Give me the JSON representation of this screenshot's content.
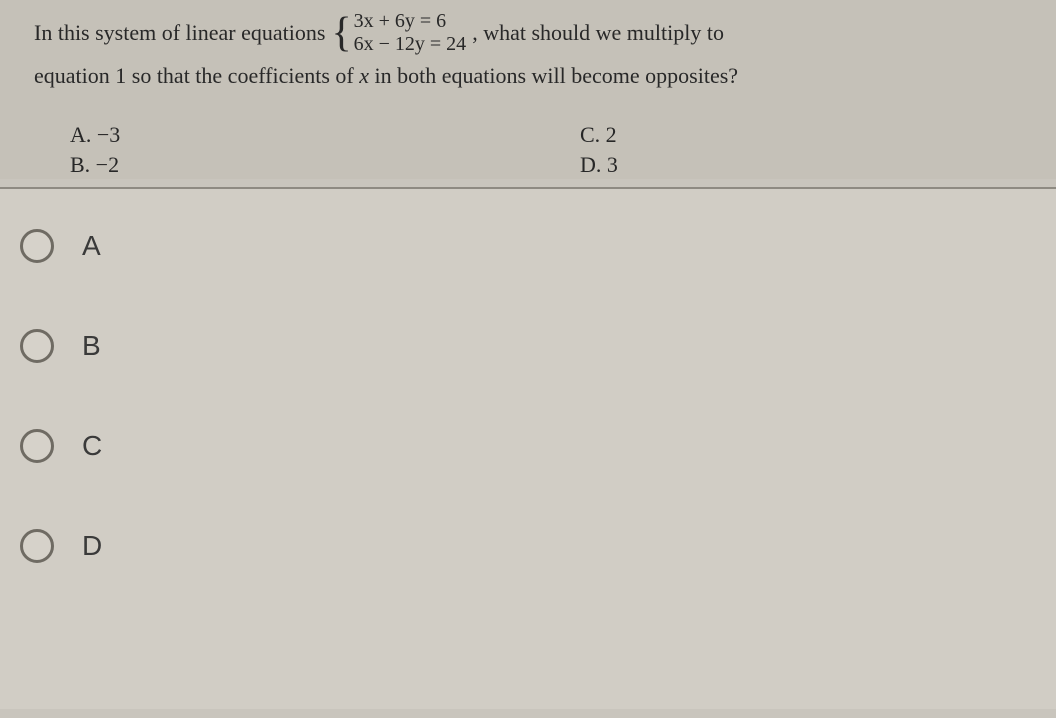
{
  "question": {
    "stem_part1": "In this system of linear equations",
    "system": {
      "eq1": "3x + 6y  = 6",
      "eq2": "6x − 12y = 24"
    },
    "stem_part2": ", what should we multiply to",
    "stem_line2_a": "equation 1 so that the coefficients of ",
    "stem_line2_var": "x",
    "stem_line2_b": " in both equations will become opposites?"
  },
  "inline_choices": {
    "a": "A.  −3",
    "b": "B.  −2",
    "c": "C.  2",
    "d": "D.  3"
  },
  "options": {
    "a": "A",
    "b": "B",
    "c": "C",
    "d": "D"
  },
  "colors": {
    "page_bg": "#c9c5bd",
    "answer_bg": "#d1cdc5",
    "text": "#2a2a2a",
    "radio_border": "#6f6b63",
    "divider": "#8e8a82"
  }
}
